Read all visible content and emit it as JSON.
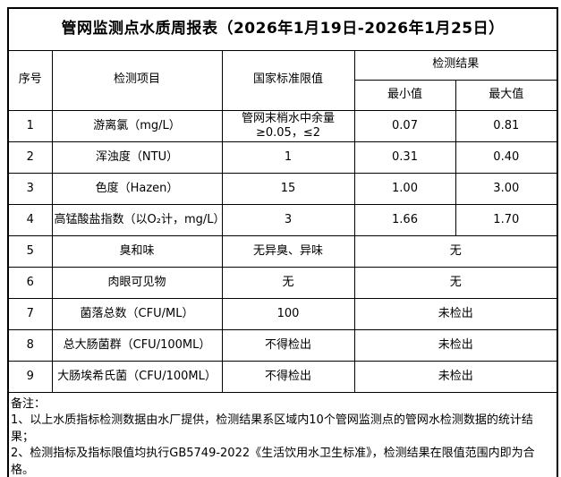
{
  "title": "管网监测点水质周报表（2026年1月19日-2026年1月25日）",
  "table": {
    "headers": {
      "index": "序号",
      "item": "检测项目",
      "limit": "国家标准限值",
      "result_group": "检测结果",
      "min": "最小值",
      "max": "最大值"
    },
    "rows": [
      {
        "index": "1",
        "item": "游离氯（mg/L）",
        "limit": "管网末梢水中余量≥0.05，≤2",
        "min": "0.07",
        "max": "0.81",
        "merged": false
      },
      {
        "index": "2",
        "item": "浑浊度（NTU）",
        "limit": "1",
        "min": "0.31",
        "max": "0.40",
        "merged": false
      },
      {
        "index": "3",
        "item": "色度（Hazen）",
        "limit": "15",
        "min": "1.00",
        "max": "3.00",
        "merged": false
      },
      {
        "index": "4",
        "item": "高锰酸盐指数（以O₂计，mg/L）",
        "limit": "3",
        "min": "1.66",
        "max": "1.70",
        "merged": false
      },
      {
        "index": "5",
        "item": "臭和味",
        "limit": "无异臭、异味",
        "result": "无",
        "merged": true
      },
      {
        "index": "6",
        "item": "肉眼可见物",
        "limit": "无",
        "result": "无",
        "merged": true
      },
      {
        "index": "7",
        "item": "菌落总数（CFU/ML）",
        "limit": "100",
        "result": "未检出",
        "merged": true
      },
      {
        "index": "8",
        "item": "总大肠菌群（CFU/100ML）",
        "limit": "不得检出",
        "result": "未检出",
        "merged": true
      },
      {
        "index": "9",
        "item": "大肠埃希氏菌（CFU/100ML）",
        "limit": "不得检出",
        "result": "未检出",
        "merged": true
      }
    ]
  },
  "notes": {
    "label": "备注：",
    "lines": [
      "1、以上水质指标检测数据由水厂提供，检测结果系区域内10个管网监测点的管网水检测数据的统计结果；",
      "2、检测指标及指标限值均执行GB5749-2022《生活饮用水卫生标准》，检测结果在限值范围内即为合格。"
    ]
  },
  "colors": {
    "text": "#000000",
    "background": "#ffffff",
    "border": "#000000"
  }
}
